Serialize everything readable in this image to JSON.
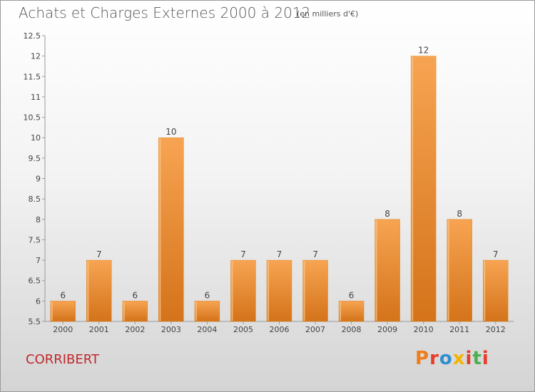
{
  "header": {
    "title": "Achats et Charges Externes 2000 à 2012",
    "subtitle": "(en milliers d'€)"
  },
  "footer": {
    "commune": "CORRIBERT",
    "logo_text": "Proxiti"
  },
  "colors": {
    "bar": "#f39a3c",
    "bar_dark": "#d97818",
    "commune_text": "#c0282d",
    "logo": [
      "#ef7d1a",
      "#e63c2a",
      "#2e8fd0",
      "#f4b400",
      "#e63c2a",
      "#4caf50",
      "#e63c2a"
    ]
  },
  "chart_data": {
    "type": "bar",
    "title": "Achats et Charges Externes 2000 à 2012",
    "subtitle": "(en milliers d'€)",
    "categories": [
      "2000",
      "2001",
      "2002",
      "2003",
      "2004",
      "2005",
      "2006",
      "2007",
      "2008",
      "2009",
      "2010",
      "2011",
      "2012"
    ],
    "values": [
      6,
      7,
      6,
      10,
      6,
      7,
      7,
      7,
      6,
      8,
      12,
      8,
      7
    ],
    "ylim": [
      5.5,
      12.5
    ],
    "yticks": [
      5.5,
      6,
      6.5,
      7,
      7.5,
      8,
      8.5,
      9,
      9.5,
      10,
      10.5,
      11,
      11.5,
      12,
      12.5
    ],
    "grid": false,
    "data_labels": true
  }
}
